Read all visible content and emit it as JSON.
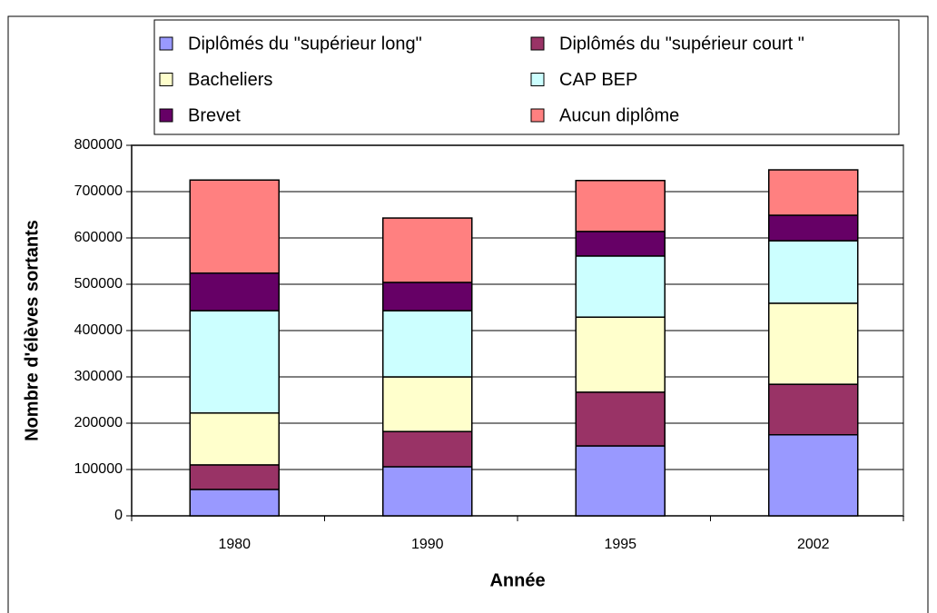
{
  "chart_data": {
    "type": "stacked-bar",
    "x_label": "Année",
    "y_label": "Nombre d'élèves sortants",
    "categories": [
      "1980",
      "1990",
      "1995",
      "2002"
    ],
    "series": [
      {
        "name": "Diplômés du \"supérieur long\"",
        "color": "#9999ff",
        "values": [
          57000,
          106000,
          151000,
          175000
        ]
      },
      {
        "name": "Diplômés du \"supérieur court \"",
        "color": "#993366",
        "values": [
          53000,
          76000,
          116000,
          109000
        ]
      },
      {
        "name": "Bacheliers",
        "color": "#ffffcc",
        "values": [
          112000,
          118000,
          162000,
          175000
        ]
      },
      {
        "name": "CAP BEP",
        "color": "#ccffff",
        "values": [
          221000,
          143000,
          132000,
          135000
        ]
      },
      {
        "name": "Brevet",
        "color": "#660066",
        "values": [
          81000,
          61000,
          53000,
          55000
        ]
      },
      {
        "name": "Aucun diplôme",
        "color": "#ff8080",
        "values": [
          201000,
          139000,
          110000,
          98000
        ]
      }
    ],
    "ylim": [
      0,
      800000
    ],
    "yticks": [
      0,
      100000,
      200000,
      300000,
      400000,
      500000,
      600000,
      700000,
      800000
    ],
    "grid": true,
    "legend": "top"
  }
}
